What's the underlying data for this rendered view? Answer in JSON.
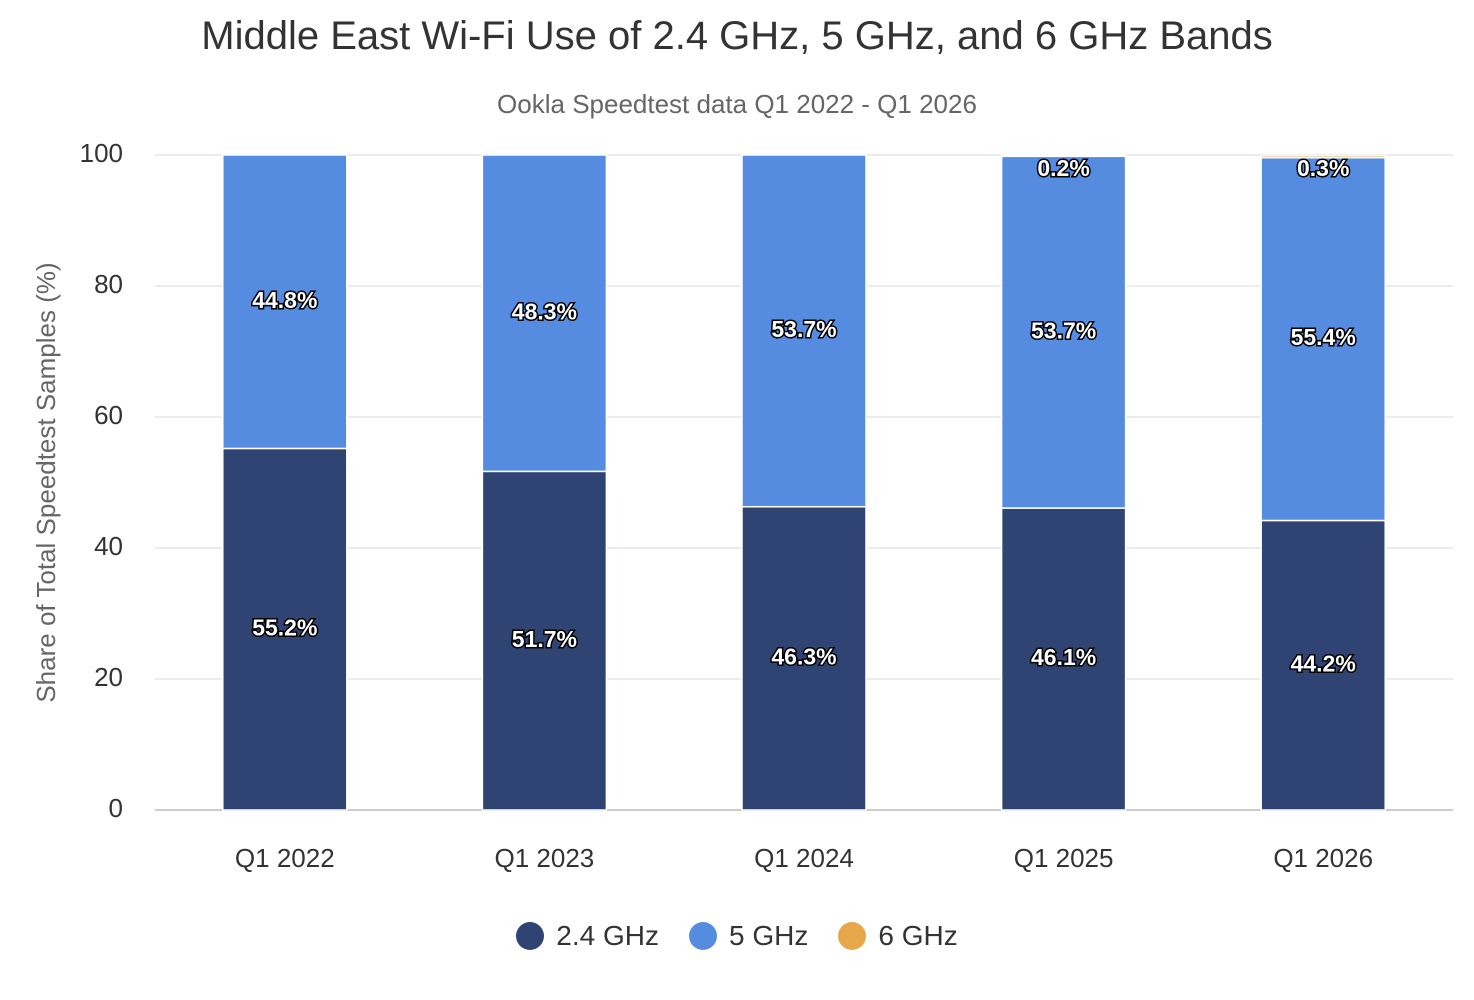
{
  "chart_data": {
    "type": "bar",
    "stacked": true,
    "title": "Middle East Wi-Fi Use of 2.4 GHz, 5 GHz, and 6 GHz Bands",
    "subtitle": "Ookla Speedtest data Q1 2022 - Q1 2026",
    "xlabel": "",
    "ylabel": "Share of Total Speedtest Samples (%)",
    "ylim": [
      0,
      100
    ],
    "yticks": [
      0,
      20,
      40,
      60,
      80,
      100
    ],
    "grid": true,
    "legend_position": "bottom",
    "categories": [
      "Q1 2022",
      "Q1 2023",
      "Q1 2024",
      "Q1 2025",
      "Q1 2026"
    ],
    "series": [
      {
        "name": "2.4 GHz",
        "color": "#2f4473",
        "values": [
          55.2,
          51.7,
          46.3,
          46.1,
          44.2
        ],
        "labels": [
          "55.2%",
          "51.7%",
          "46.3%",
          "46.1%",
          "44.2%"
        ]
      },
      {
        "name": "5 GHz",
        "color": "#568ce0",
        "values": [
          44.8,
          48.3,
          53.7,
          53.7,
          55.4
        ],
        "labels": [
          "44.8%",
          "48.3%",
          "53.7%",
          "53.7%",
          "55.4%"
        ]
      },
      {
        "name": "6 GHz",
        "color": "#e6a84a",
        "values": [
          0,
          0,
          0,
          0.2,
          0.3
        ],
        "labels": [
          "",
          "",
          "",
          "0.2%",
          "0.3%"
        ]
      }
    ]
  }
}
